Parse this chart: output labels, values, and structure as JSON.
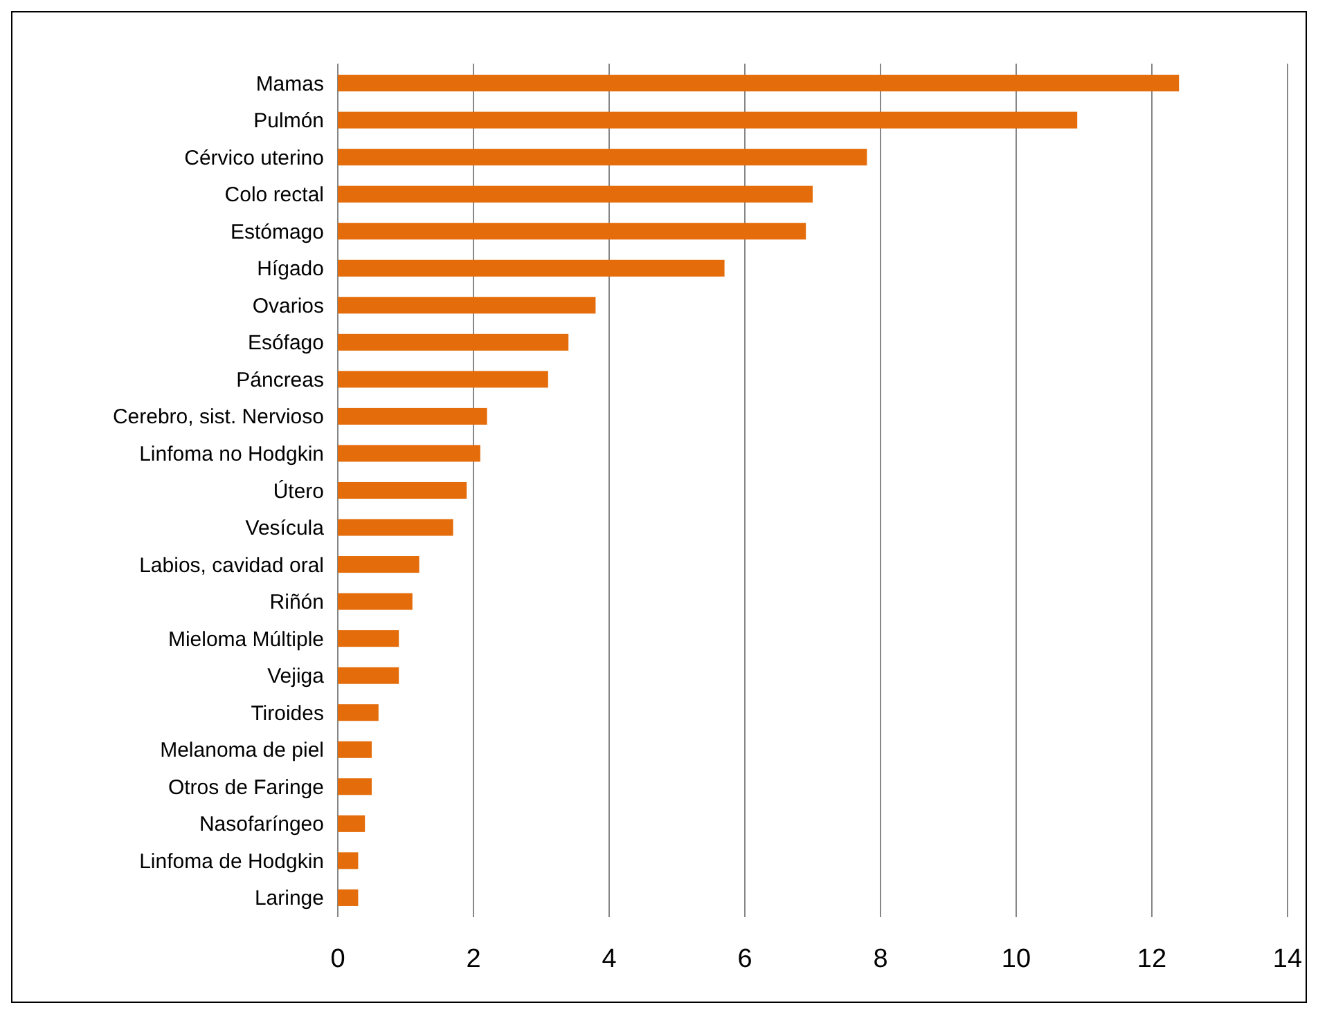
{
  "chart_data": {
    "type": "bar",
    "orientation": "horizontal",
    "categories": [
      "Mamas",
      "Pulmón",
      "Cérvico uterino",
      "Colo rectal",
      "Estómago",
      "Hígado",
      "Ovarios",
      "Esófago",
      "Páncreas",
      "Cerebro, sist. Nervioso",
      "Linfoma no Hodgkin",
      "Útero",
      "Vesícula",
      "Labios, cavidad oral",
      "Riñón",
      "Mieloma Múltiple",
      "Vejiga",
      "Tiroides",
      "Melanoma de piel",
      "Otros de Faringe",
      "Nasofaríngeo",
      "Linfoma de Hodgkin",
      "Laringe"
    ],
    "values": [
      12.4,
      10.9,
      7.8,
      7.0,
      6.9,
      5.7,
      3.8,
      3.4,
      3.1,
      2.2,
      2.1,
      1.9,
      1.7,
      1.2,
      1.1,
      0.9,
      0.9,
      0.6,
      0.5,
      0.5,
      0.4,
      0.3,
      0.3
    ],
    "color": "#e46c0a",
    "xlim": [
      0,
      14
    ],
    "xticks": [
      0,
      2,
      4,
      6,
      8,
      10,
      12,
      14
    ],
    "grid": "x"
  }
}
